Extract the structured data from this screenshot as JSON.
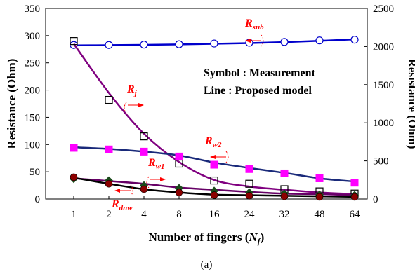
{
  "chart_data": {
    "type": "line",
    "xlabel": "Number of fingers (",
    "xlabel_var": "N",
    "xlabel_sub": "f",
    "xlabel_end": ")",
    "ylabel_left": "Resistance (Ohm)",
    "ylabel_right": "Resistance (Ohm)",
    "caption": "(a)",
    "x_categories": [
      "1",
      "2",
      "4",
      "8",
      "16",
      "24",
      "32",
      "48",
      "64"
    ],
    "ylim_left": [
      0,
      350
    ],
    "yticks_left": [
      0,
      50,
      100,
      150,
      200,
      250,
      300,
      350
    ],
    "ylim_right": [
      0,
      2500
    ],
    "yticks_right": [
      0,
      500,
      1000,
      1500,
      2000,
      2500
    ],
    "legend": [
      "Symbol : Measurement",
      "Line : Proposed model"
    ],
    "colors": {
      "R_sub": "#0000cc",
      "R_j_line": "#800080",
      "R_j_marker": "#000000",
      "R_w2_line": "#1a2a7a",
      "R_w2_marker": "#ff00ff",
      "R_w1_line": "#660066",
      "R_w1_marker": "#1a4a1a",
      "R_dnw_line": "#000000",
      "R_dnw_marker": "#8b0000",
      "annotation": "#ff0000"
    },
    "series": [
      {
        "name": "R_sub",
        "axis": "right",
        "marker": "open-circle",
        "measured": [
          2020,
          2020,
          2025,
          2030,
          2040,
          2050,
          2060,
          2080,
          2090
        ],
        "model": [
          2015,
          2018,
          2022,
          2028,
          2036,
          2045,
          2058,
          2075,
          2095
        ]
      },
      {
        "name": "R_j",
        "axis": "left",
        "marker": "open-square",
        "measured": [
          290,
          182,
          115,
          65,
          34,
          28,
          18,
          14,
          10
        ],
        "model": [
          285,
          195,
          120,
          68,
          35,
          23,
          17,
          12,
          9
        ]
      },
      {
        "name": "R_w2",
        "axis": "left",
        "marker": "filled-square",
        "measured": [
          94,
          91,
          87,
          78,
          63,
          55,
          47,
          38,
          30
        ],
        "model": [
          95,
          92,
          87,
          80,
          67,
          57,
          48,
          38,
          32
        ]
      },
      {
        "name": "R_w1",
        "axis": "left",
        "marker": "filled-diamond",
        "measured": [
          37,
          34,
          25,
          20,
          15,
          12,
          10,
          8,
          7
        ],
        "model": [
          38,
          33,
          28,
          21,
          17,
          13,
          10,
          9,
          7
        ]
      },
      {
        "name": "R_dnw",
        "axis": "left",
        "marker": "filled-circle",
        "measured": [
          40,
          28,
          18,
          12,
          7,
          6,
          5,
          4,
          4
        ],
        "model": [
          39,
          28,
          18,
          12,
          8,
          7,
          6,
          5,
          4
        ]
      }
    ],
    "annotations": [
      {
        "main": "R",
        "sub": "sub",
        "series": "R_sub"
      },
      {
        "main": "R",
        "sub": "j",
        "series": "R_j"
      },
      {
        "main": "R",
        "sub": "w2",
        "series": "R_w2"
      },
      {
        "main": "R",
        "sub": "w1",
        "series": "R_w1"
      },
      {
        "main": "R",
        "sub": "dnw",
        "series": "R_dnw"
      }
    ]
  }
}
